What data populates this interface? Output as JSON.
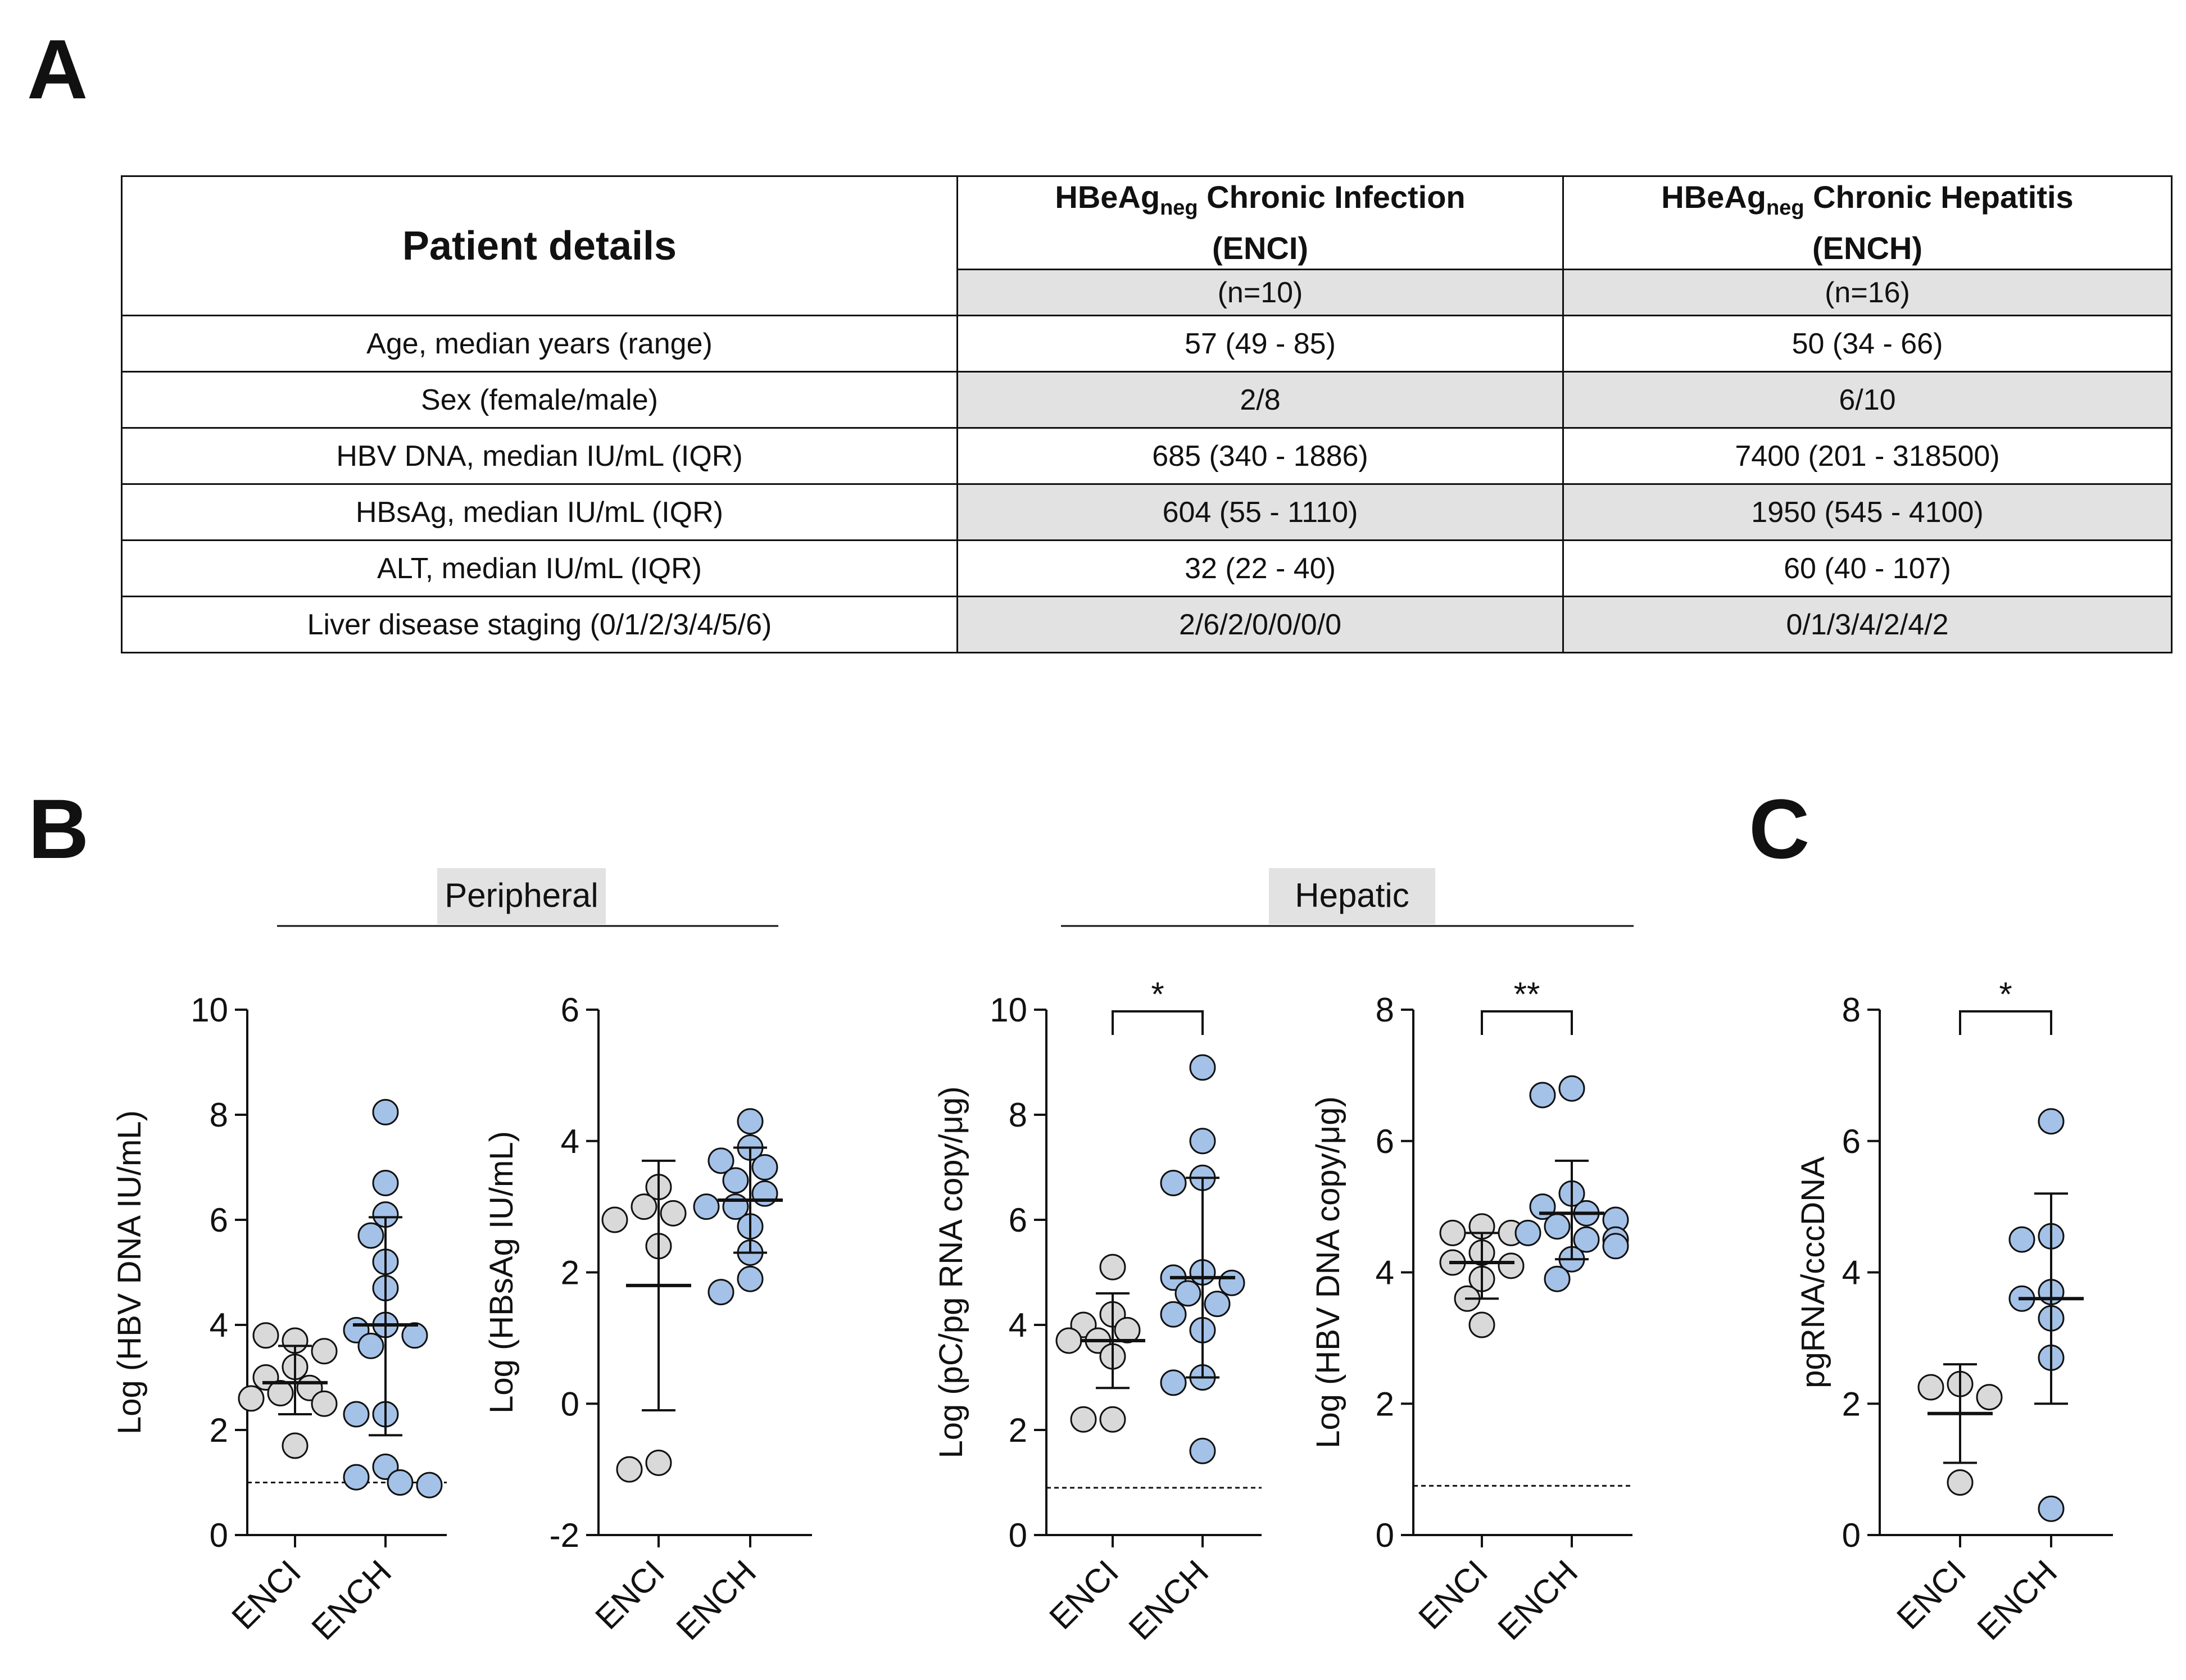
{
  "panel_labels": {
    "a": "A",
    "b": "B",
    "c": "C"
  },
  "table": {
    "title": "Patient details",
    "col1": {
      "name_pre": "HBeAg",
      "name_sub": "neg",
      "name_post": " Chronic Infection",
      "abbr": "(ENCI)",
      "n": "(n=10)"
    },
    "col2": {
      "name_pre": "HBeAg",
      "name_sub": "neg",
      "name_post": " Chronic Hepatitis",
      "abbr": "(ENCH)",
      "n": "(n=16)"
    },
    "rows": [
      {
        "label": "Age, median years (range)",
        "enci": "57 (49 - 85)",
        "ench": "50 (34 - 66)"
      },
      {
        "label": "Sex (female/male)",
        "enci": "2/8",
        "ench": "6/10"
      },
      {
        "label": "HBV DNA, median IU/mL (IQR)",
        "enci": "685 (340 - 1886)",
        "ench": "7400 (201 - 318500)"
      },
      {
        "label": "HBsAg, median IU/mL (IQR)",
        "enci": "604 (55 - 1110)",
        "ench": "1950 (545 - 4100)"
      },
      {
        "label": "ALT, median IU/mL (IQR)",
        "enci": "32 (22 - 40)",
        "ench": "60 (40 - 107)"
      },
      {
        "label": "Liver disease staging (0/1/2/3/4/5/6)",
        "enci": "2/6/2/0/0/0/0",
        "ench": "0/1/3/4/2/4/2"
      }
    ]
  },
  "group_labels": {
    "peripheral": "Peripheral",
    "hepatic": "Hepatic"
  },
  "colors": {
    "enci": "#d9d9d9",
    "ench": "#a4c2e8",
    "table_shade": "#e2e2e2",
    "stroke": "#111111"
  },
  "chart_data": [
    {
      "type": "scatter",
      "id": "hbv-dna-serum",
      "ylabel": "Log (HBV DNA IU/mL)",
      "categories": [
        "ENCI",
        "ENCH"
      ],
      "ylim": [
        0,
        10
      ],
      "yticks": [
        0,
        2,
        4,
        6,
        8,
        10
      ],
      "detection_limit": 1.0,
      "significance": null,
      "series": [
        {
          "name": "ENCI",
          "color": "enci",
          "mean": 2.9,
          "sd_low": 2.3,
          "sd_high": 3.6,
          "values": [
            3.7,
            3.8,
            3.5,
            3.2,
            3.0,
            2.8,
            2.7,
            2.6,
            2.5,
            1.7
          ]
        },
        {
          "name": "ENCH",
          "color": "ench",
          "mean": 4.0,
          "sd_low": 1.9,
          "sd_high": 6.05,
          "values": [
            8.05,
            6.7,
            6.1,
            5.7,
            5.2,
            4.7,
            4.0,
            3.9,
            3.8,
            3.6,
            2.3,
            2.3,
            1.3,
            1.1,
            1.0,
            0.95
          ]
        }
      ]
    },
    {
      "type": "scatter",
      "id": "hbsag-serum",
      "ylabel": "Log (HBsAg IU/mL)",
      "categories": [
        "ENCI",
        "ENCH"
      ],
      "ylim": [
        -2,
        6
      ],
      "yticks": [
        -2,
        0,
        2,
        4,
        6
      ],
      "detection_limit": null,
      "significance": null,
      "series": [
        {
          "name": "ENCI",
          "color": "enci",
          "mean": 1.8,
          "sd_low": -0.1,
          "sd_high": 3.7,
          "values": [
            3.3,
            3.0,
            2.9,
            2.8,
            2.4,
            -0.9,
            -1.0
          ]
        },
        {
          "name": "ENCH",
          "color": "ench",
          "mean": 3.1,
          "sd_low": 2.3,
          "sd_high": 3.9,
          "values": [
            4.3,
            3.9,
            3.7,
            3.6,
            3.4,
            3.2,
            3.0,
            3.0,
            2.7,
            2.3,
            1.9,
            1.7
          ]
        }
      ]
    },
    {
      "type": "scatter",
      "id": "hbv-rna-liver",
      "ylabel": "Log (pC/pg RNA copy/μg)",
      "categories": [
        "ENCI",
        "ENCH"
      ],
      "ylim": [
        0,
        10
      ],
      "yticks": [
        0,
        2,
        4,
        6,
        8,
        10
      ],
      "detection_limit": 0.9,
      "significance": "*",
      "series": [
        {
          "name": "ENCI",
          "color": "enci",
          "mean": 3.7,
          "sd_low": 2.8,
          "sd_high": 4.6,
          "values": [
            5.1,
            4.2,
            4.0,
            3.9,
            3.7,
            3.7,
            3.4,
            2.2,
            2.2
          ]
        },
        {
          "name": "ENCH",
          "color": "ench",
          "mean": 4.9,
          "sd_low": 3.0,
          "sd_high": 6.8,
          "values": [
            8.9,
            7.5,
            6.8,
            6.7,
            5.0,
            4.9,
            4.8,
            4.6,
            4.4,
            4.2,
            3.9,
            3.0,
            2.9,
            1.6
          ]
        }
      ]
    },
    {
      "type": "scatter",
      "id": "hbv-dna-liver",
      "ylabel": "Log (HBV DNA copy/μg)",
      "categories": [
        "ENCI",
        "ENCH"
      ],
      "ylim": [
        0,
        8
      ],
      "yticks": [
        0,
        2,
        4,
        6,
        8
      ],
      "detection_limit": 0.75,
      "significance": "**",
      "series": [
        {
          "name": "ENCI",
          "color": "enci",
          "mean": 4.15,
          "sd_low": 3.6,
          "sd_high": 4.6,
          "values": [
            4.7,
            4.6,
            4.6,
            4.3,
            4.15,
            4.1,
            3.9,
            3.6,
            3.2
          ]
        },
        {
          "name": "ENCH",
          "color": "ench",
          "mean": 4.9,
          "sd_low": 4.2,
          "sd_high": 5.7,
          "values": [
            6.8,
            6.7,
            5.2,
            5.0,
            4.9,
            4.8,
            4.7,
            4.6,
            4.5,
            4.5,
            4.4,
            4.2,
            3.9
          ]
        }
      ]
    },
    {
      "type": "scatter",
      "id": "pgrna-cccdna",
      "ylabel": "pgRNA/cccDNA",
      "categories": [
        "ENCI",
        "ENCH"
      ],
      "ylim": [
        0,
        8
      ],
      "yticks": [
        0,
        2,
        4,
        6,
        8
      ],
      "detection_limit": null,
      "significance": "*",
      "series": [
        {
          "name": "ENCI",
          "color": "enci",
          "mean": 1.85,
          "sd_low": 1.1,
          "sd_high": 2.6,
          "values": [
            2.3,
            2.25,
            2.1,
            0.8
          ]
        },
        {
          "name": "ENCH",
          "color": "ench",
          "mean": 3.6,
          "sd_low": 2.0,
          "sd_high": 5.2,
          "values": [
            6.3,
            4.55,
            4.5,
            3.7,
            3.6,
            3.3,
            2.7,
            0.4
          ]
        }
      ]
    }
  ]
}
